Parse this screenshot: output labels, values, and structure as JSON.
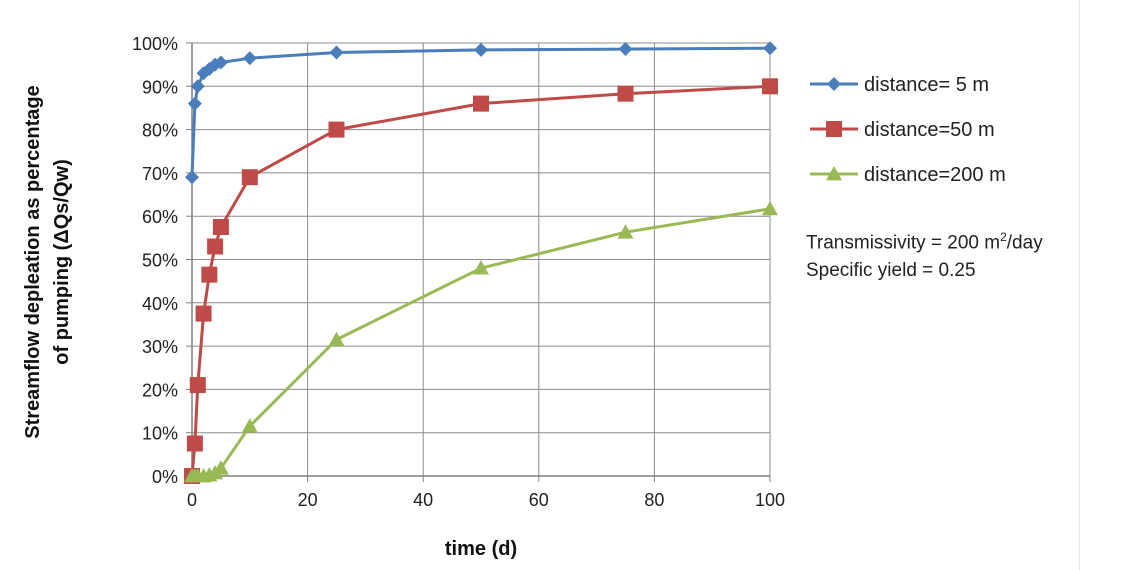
{
  "chart_data": {
    "type": "line",
    "xlabel": "time (d)",
    "ylabel_line1": "Streamflow depleation as percentage",
    "ylabel_line2": "of pumping (ΔQs/Qw)",
    "xlim": [
      0,
      100
    ],
    "ylim": [
      0,
      1
    ],
    "x_ticks": [
      0,
      20,
      40,
      60,
      80,
      100
    ],
    "y_ticks": [
      "0%",
      "10%",
      "20%",
      "30%",
      "40%",
      "50%",
      "60%",
      "70%",
      "80%",
      "90%",
      "100%"
    ],
    "grid": true,
    "legend_position": "right",
    "series": [
      {
        "name": "distance= 5 m",
        "color": "#4a7ebb",
        "marker": "diamond",
        "x": [
          0,
          0.5,
          1,
          2,
          3,
          4,
          5,
          10,
          25,
          50,
          75,
          100
        ],
        "y": [
          0.69,
          0.86,
          0.9,
          0.93,
          0.94,
          0.95,
          0.955,
          0.965,
          0.978,
          0.984,
          0.986,
          0.988
        ]
      },
      {
        "name": "distance=50 m",
        "color": "#be4b48",
        "marker": "square",
        "x": [
          0,
          0.5,
          1,
          2,
          3,
          4,
          5,
          10,
          25,
          50,
          75,
          100
        ],
        "y": [
          0.0,
          0.075,
          0.21,
          0.375,
          0.465,
          0.53,
          0.575,
          0.69,
          0.8,
          0.86,
          0.883,
          0.9
        ]
      },
      {
        "name": "distance=200 m",
        "color": "#98b954",
        "marker": "triangle",
        "x": [
          0,
          0.5,
          1,
          2,
          3,
          4,
          5,
          10,
          25,
          50,
          75,
          100
        ],
        "y": [
          0.0,
          0.0,
          0.0,
          0.0,
          0.002,
          0.007,
          0.018,
          0.115,
          0.315,
          0.48,
          0.563,
          0.617
        ]
      }
    ],
    "annotations": {
      "transmissivity_text": "Transmissivity  =  200  m",
      "transmissivity_sup": "2",
      "transmissivity_unit": "/day",
      "specific_yield": "Specific yield = 0.25"
    }
  }
}
